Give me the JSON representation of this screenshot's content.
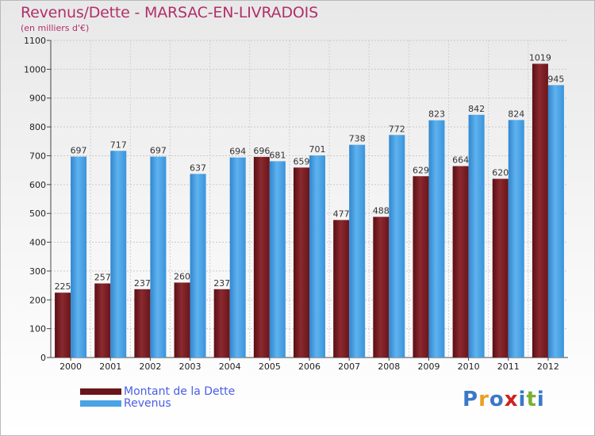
{
  "header": {
    "title": "Revenus/Dette - MARSAC-EN-LIVRADOIS",
    "subtitle": "(en milliers d'€)"
  },
  "colors": {
    "dette": "#7d1f24",
    "revenus": "#4ba3e3",
    "title": "#b0306a",
    "legend_text": "#4a5ee8"
  },
  "chart_data": {
    "type": "bar",
    "title": "Revenus/Dette - MARSAC-EN-LIVRADOIS",
    "subtitle": "(en milliers d'€)",
    "xlabel": "",
    "ylabel": "",
    "ylim": [
      0,
      1100
    ],
    "yticks": [
      0,
      100,
      200,
      300,
      400,
      500,
      600,
      700,
      800,
      900,
      1000,
      1100
    ],
    "grid": true,
    "legend_position": "bottom-left",
    "categories": [
      "2000",
      "2001",
      "2002",
      "2003",
      "2004",
      "2005",
      "2006",
      "2007",
      "2008",
      "2009",
      "2010",
      "2011",
      "2012"
    ],
    "series": [
      {
        "name": "Montant de la Dette",
        "values": [
          225,
          257,
          237,
          260,
          237,
          696,
          659,
          477,
          488,
          629,
          664,
          620,
          1019
        ]
      },
      {
        "name": "Revenus",
        "values": [
          697,
          717,
          697,
          637,
          694,
          681,
          701,
          738,
          772,
          823,
          842,
          824,
          945
        ]
      }
    ]
  },
  "legend": {
    "dette_label": "Montant de la Dette",
    "revenus_label": "Revenus"
  },
  "logo": {
    "letters": [
      "P",
      "r",
      "o",
      "x",
      "i",
      "t",
      "i"
    ],
    "colors": [
      "#3b78c8",
      "#e8a020",
      "#3b78c8",
      "#d02020",
      "#3b78c8",
      "#7ab030",
      "#3b78c8"
    ]
  }
}
